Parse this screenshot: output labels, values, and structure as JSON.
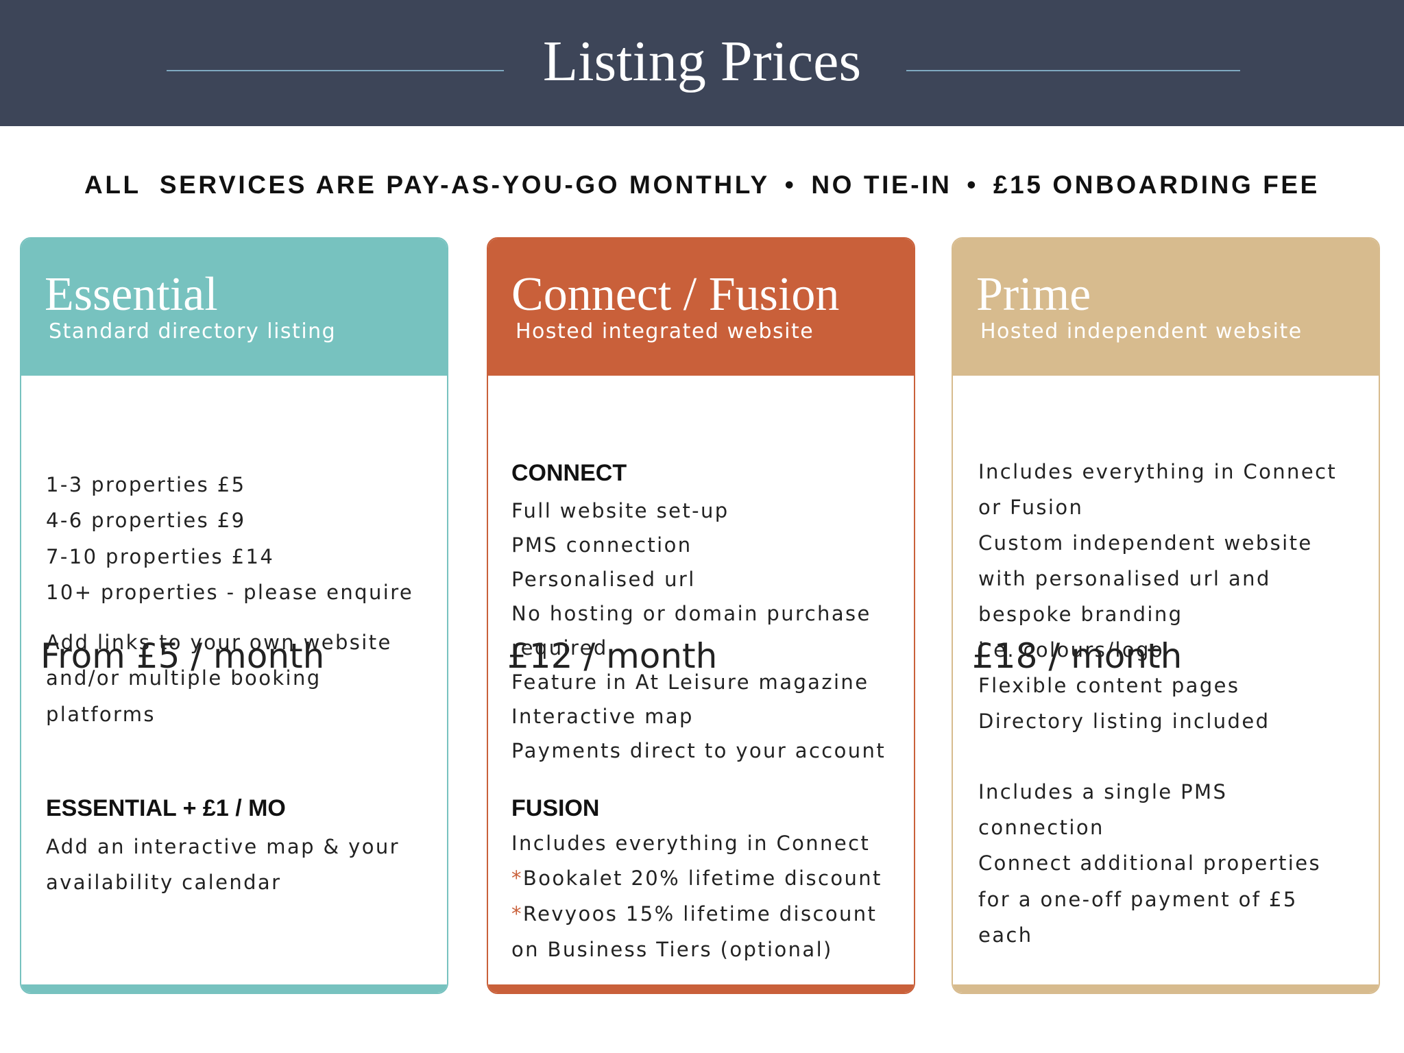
{
  "header": {
    "title": "Listing Prices"
  },
  "banner": {
    "items": [
      "ALL  SERVICES ARE PAY-AS-YOU-GO MONTHLY",
      "NO TIE-IN",
      "£15 ONBOARDING FEE"
    ]
  },
  "cards": [
    {
      "name": "Essential",
      "subtitle": "Standard directory listing",
      "price": "From £5 / month",
      "groups": [
        {
          "lines": [
            "1-3 properties £5",
            "4-6 properties £9",
            "7-10 properties £14",
            "10+ properties - please enquire"
          ]
        },
        {
          "lines": [
            "Add links to your own website",
            "and/or multiple booking",
            "platforms"
          ]
        },
        {
          "heading": "ESSENTIAL + £1 / MO",
          "lines": [
            "Add an interactive map & your",
            "availability calendar"
          ]
        }
      ]
    },
    {
      "name": "Connect / Fusion",
      "subtitle": "Hosted integrated website",
      "price": "£12 / month",
      "groups": [
        {
          "heading": "CONNECT",
          "lines": [
            "Full website set-up",
            "PMS connection",
            "Personalised url",
            "No hosting or domain purchase",
            "required",
            "Feature in At Leisure magazine",
            "Interactive map",
            "Payments direct to your account"
          ]
        },
        {
          "heading": "FUSION",
          "lines": [
            "Includes everything in Connect",
            {
              "asterisk": "*",
              "text": "Bookalet 20% lifetime discount"
            },
            {
              "asterisk": "*",
              "text": "Revyoos 15% lifetime discount"
            },
            "on Business Tiers (optional)"
          ]
        }
      ]
    },
    {
      "name": "Prime",
      "subtitle": "Hosted independent website",
      "price": "£18 / month",
      "groups": [
        {
          "lines": [
            "Includes everything in Connect",
            "or Fusion",
            "Custom independent website",
            "with personalised url and",
            "bespoke branding",
            "i.e. colours/logo",
            "Flexible content pages",
            "Directory listing included"
          ]
        },
        {
          "lines": [
            "Includes a single PMS",
            "connection",
            "Connect additional properties",
            "for a one-off payment of £5",
            "each"
          ]
        }
      ]
    }
  ]
}
